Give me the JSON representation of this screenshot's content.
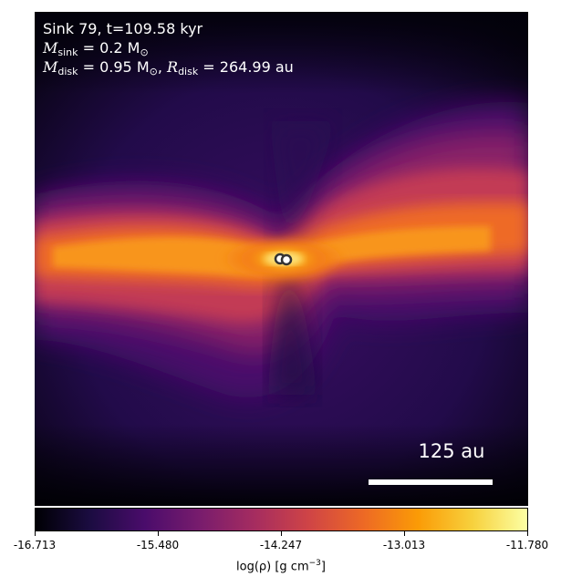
{
  "annotation": {
    "line1": "Sink 79, t=109.58 kyr",
    "sink_symbol": "M",
    "sink_sub": "sink",
    "sink_value": " = 0.2 M",
    "sun_symbol": "⊙",
    "disk_symbol": "M",
    "disk_sub": "disk",
    "disk_value": " = 0.95 M",
    "radius_symbol": "R",
    "radius_sub": "disk",
    "radius_value": " = 264.99 au"
  },
  "scale_bar": {
    "label": "125 au"
  },
  "colorbar": {
    "ticks": [
      "-16.713",
      "-15.480",
      "-14.247",
      "-13.013",
      "-11.780"
    ],
    "label_main": "log(ρ) [g cm",
    "label_sup": "−3",
    "label_end": "]",
    "colormap": [
      "#000004",
      "#1b0c41",
      "#4a0c6b",
      "#781c6d",
      "#a52c60",
      "#cf4446",
      "#ed6925",
      "#fb9b06",
      "#f7d13d",
      "#fcffa4"
    ]
  }
}
